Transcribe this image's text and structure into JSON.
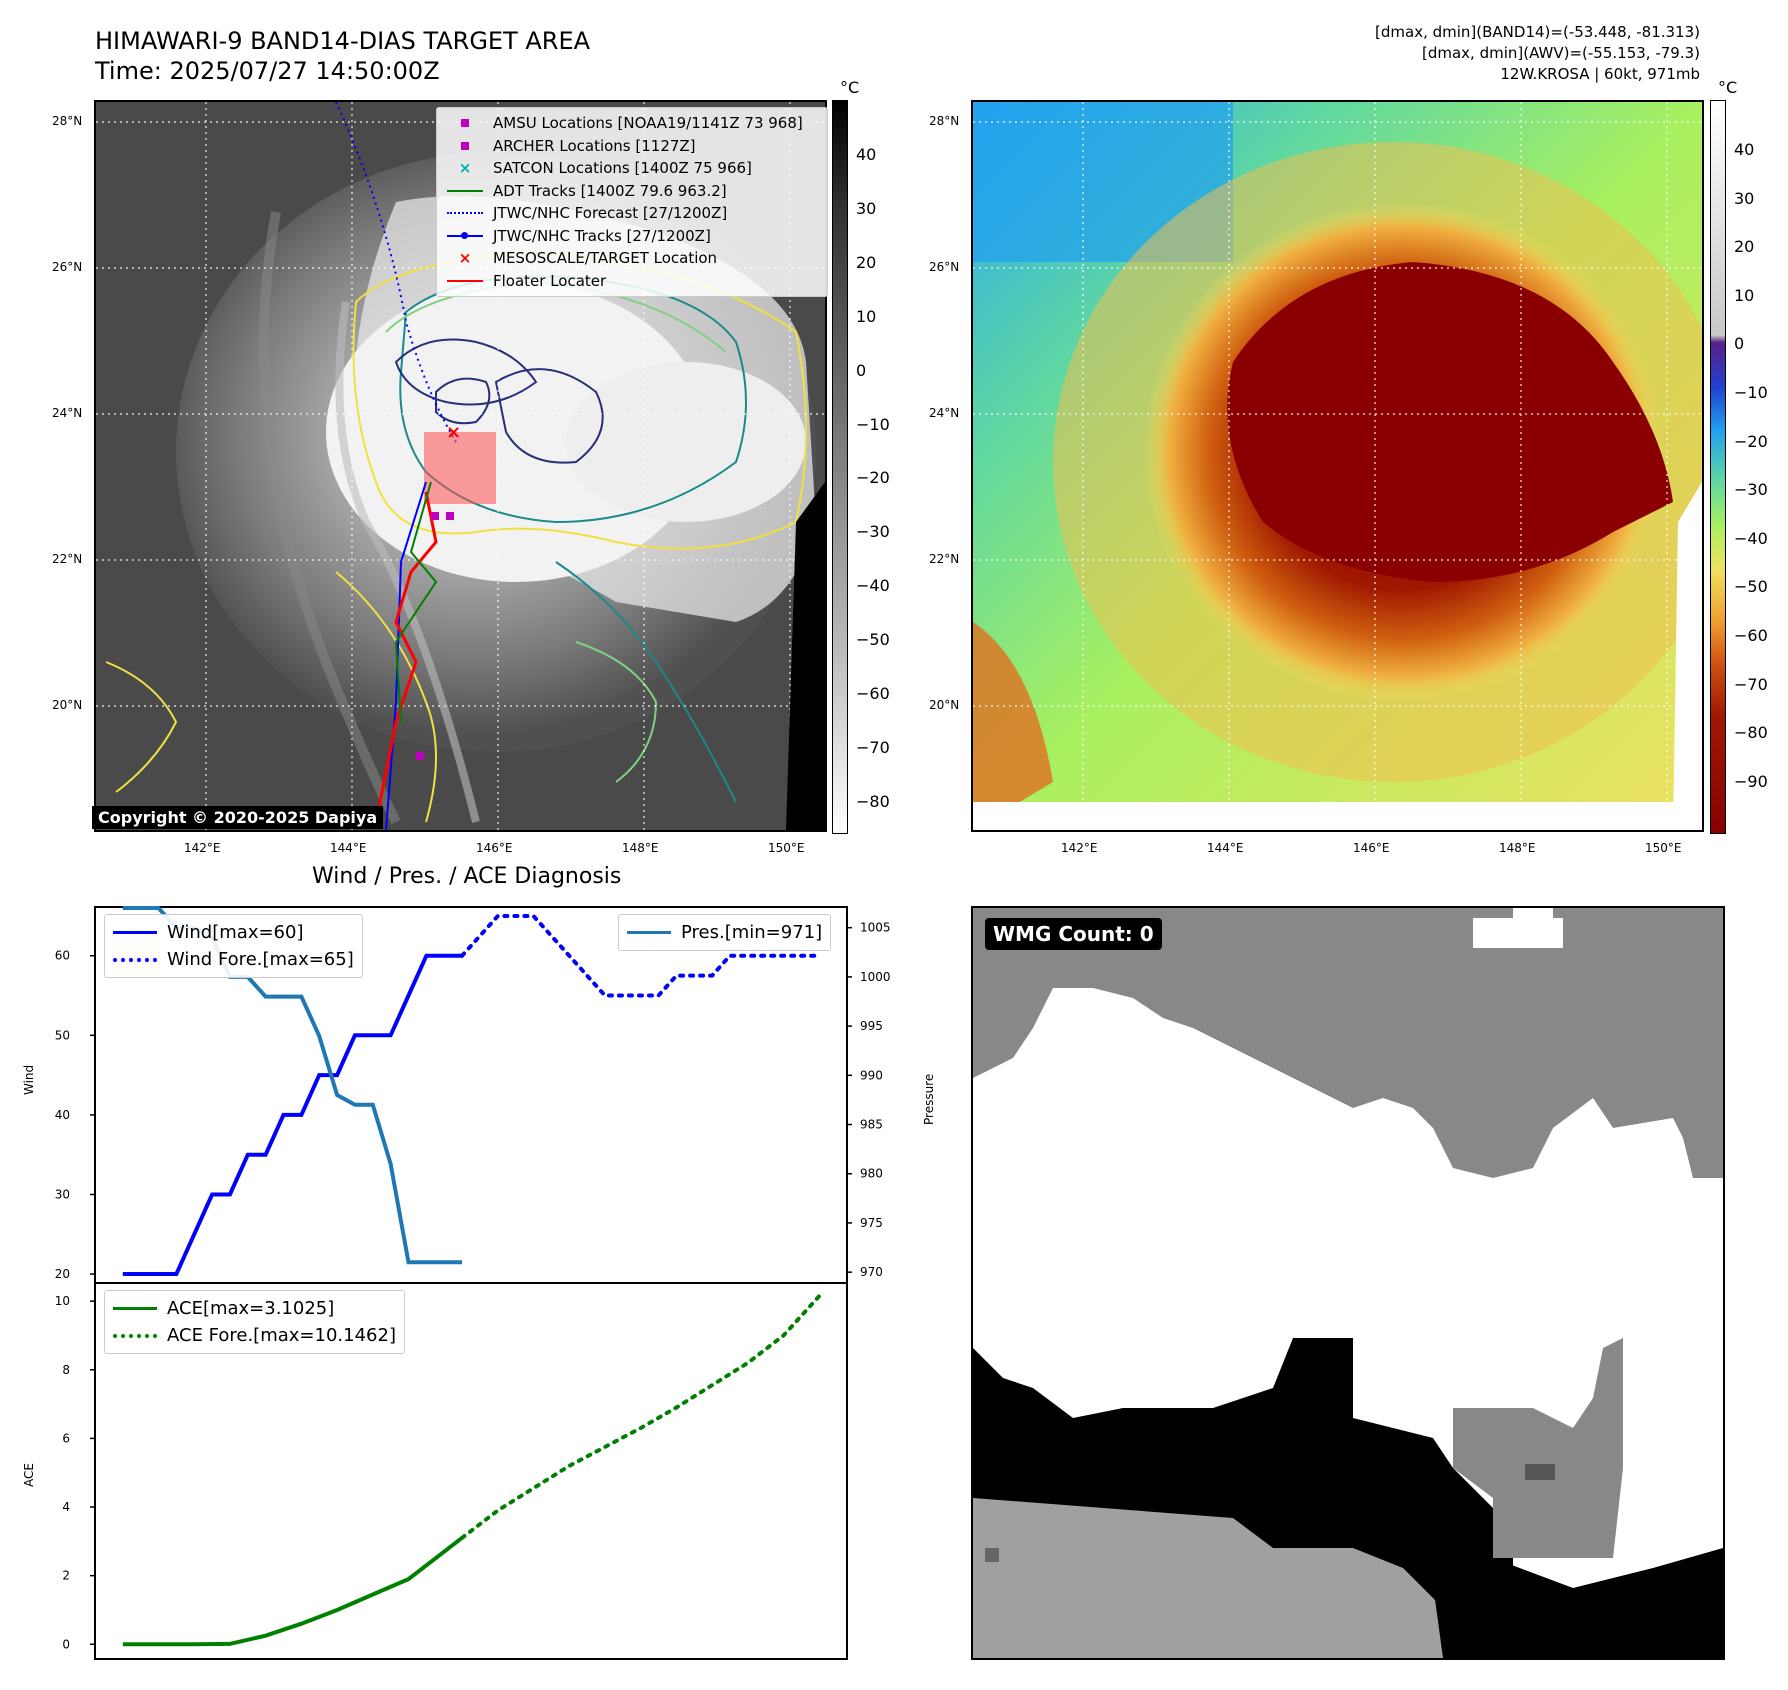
{
  "header": {
    "title_line1": "HIMAWARI-9 BAND14-DIAS TARGET AREA",
    "title_line2": "Time: 2025/07/27 14:50:00Z",
    "right_line1": "[dmax, dmin](BAND14)=(-53.448, -81.313)",
    "right_line2": "[dmax, dmin](AWV)=(-55.153, -79.3)",
    "right_line3": "12W.KROSA | 60kt, 971mb"
  },
  "maps": {
    "lat_labels": [
      "28°N",
      "26°N",
      "24°N",
      "22°N",
      "20°N"
    ],
    "lon_labels": [
      "142°E",
      "144°E",
      "146°E",
      "148°E",
      "150°E"
    ],
    "unit": "°C",
    "left_colorbar_ticks": [
      "40",
      "30",
      "20",
      "10",
      "0",
      "−10",
      "−20",
      "−30",
      "−40",
      "−50",
      "−60",
      "−70",
      "−80"
    ],
    "right_colorbar_ticks": [
      "40",
      "30",
      "20",
      "10",
      "0",
      "−10",
      "−20",
      "−30",
      "−40",
      "−50",
      "−60",
      "−70",
      "−80",
      "−90"
    ],
    "copyright": "Copyright © 2020-2025 Dapiya",
    "legend": [
      {
        "label": "AMSU Locations [NOAA19/1141Z 73 968]",
        "color": "#c000c0",
        "marker": "square"
      },
      {
        "label": "ARCHER Locations [1127Z]",
        "color": "#c000c0",
        "marker": "square"
      },
      {
        "label": "SATCON Locations [1400Z 75 966]",
        "color": "#00b0b0",
        "marker": "x"
      },
      {
        "label": "ADT Tracks [1400Z 79.6 963.2]",
        "color": "#008000",
        "marker": "line"
      },
      {
        "label": "JTWC/NHC Forecast [27/1200Z]",
        "color": "#0000ff",
        "marker": "dotted"
      },
      {
        "label": "JTWC/NHC Tracks [27/1200Z]",
        "color": "#0000ff",
        "marker": "line-dot"
      },
      {
        "label": "MESOSCALE/TARGET Location",
        "color": "#ff0000",
        "marker": "x"
      },
      {
        "label": "Floater Locater",
        "color": "#ff0000",
        "marker": "line"
      }
    ]
  },
  "diag": {
    "title": "Wind / Pres. / ACE Diagnosis",
    "wind_ylabel": "Wind",
    "pres_ylabel": "Pressure",
    "ace_ylabel": "ACE",
    "wind_legend": [
      "Wind[max=60]",
      "Wind Fore.[max=65]"
    ],
    "pres_legend": "Pres.[min=971]",
    "ace_legend": [
      "ACE[max=3.1025]",
      "ACE Fore.[max=10.1462]"
    ],
    "wind_ticks": [
      "60",
      "50",
      "40",
      "30",
      "20"
    ],
    "pres_ticks": [
      "1005",
      "1000",
      "995",
      "990",
      "985",
      "980",
      "975",
      "970"
    ],
    "ace_ticks": [
      "10",
      "8",
      "6",
      "4",
      "2",
      "0"
    ],
    "wmg": "WMG Count: 0"
  },
  "chart_data": [
    {
      "type": "line",
      "title": "Wind / Pres. / ACE Diagnosis",
      "ylabel": "Wind",
      "ylim": [
        19,
        66
      ],
      "series": [
        {
          "name": "Wind[max=60]",
          "x": [
            0,
            1,
            2,
            3,
            4,
            5,
            6,
            7,
            8,
            9,
            10,
            11,
            12,
            13,
            14,
            15,
            16,
            17,
            18,
            19
          ],
          "y": [
            20,
            20,
            20,
            20,
            25,
            30,
            30,
            35,
            35,
            40,
            40,
            45,
            45,
            50,
            50,
            50,
            55,
            60,
            60,
            60
          ]
        },
        {
          "name": "Wind Fore.[max=65]",
          "x": [
            19,
            20,
            21,
            22,
            23,
            24,
            25,
            26,
            27,
            28,
            29,
            30,
            31,
            32,
            33,
            34,
            35,
            36,
            37,
            38,
            39
          ],
          "y": [
            60,
            62.5,
            65,
            65,
            65,
            62.5,
            60,
            57.5,
            55,
            55,
            55,
            55,
            57.5,
            57.5,
            57.5,
            60,
            60,
            60,
            60,
            60,
            60
          ]
        }
      ]
    },
    {
      "type": "line",
      "ylabel": "Pressure",
      "ylim": [
        969,
        1007
      ],
      "series": [
        {
          "name": "Pres.[min=971]",
          "x": [
            0,
            1,
            2,
            3,
            4,
            5,
            6,
            7,
            8,
            9,
            10,
            11,
            12,
            13,
            14,
            15,
            16,
            17,
            18,
            19
          ],
          "y": [
            1007,
            1007,
            1007,
            1005,
            1005,
            1004,
            1000,
            1000,
            998,
            998,
            998,
            994,
            988,
            987,
            987,
            981,
            971,
            971,
            971,
            971
          ]
        }
      ]
    },
    {
      "type": "line",
      "ylabel": "ACE",
      "ylim": [
        -0.4,
        10.5
      ],
      "series": [
        {
          "name": "ACE[max=3.1025]",
          "x": [
            0,
            2,
            4,
            6,
            8,
            10,
            12,
            14,
            16,
            19
          ],
          "y": [
            0,
            0,
            0,
            0.01,
            0.25,
            0.6,
            1.0,
            1.45,
            1.9,
            3.1025
          ]
        },
        {
          "name": "ACE Fore.[max=10.1462]",
          "x": [
            19,
            21,
            23,
            25,
            27,
            29,
            31,
            33,
            35,
            37,
            39
          ],
          "y": [
            3.1025,
            3.9,
            4.55,
            5.2,
            5.75,
            6.3,
            6.9,
            7.55,
            8.2,
            9.0,
            10.1462
          ]
        }
      ]
    }
  ]
}
